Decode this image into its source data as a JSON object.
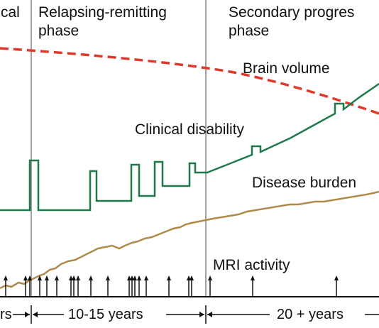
{
  "chart_data": {
    "type": "line",
    "title": "",
    "xlabel": "",
    "ylabel": "",
    "phases": [
      {
        "label_line1": "cal",
        "label_line2": ""
      },
      {
        "label_line1": "Relapsing-remitting",
        "label_line2": "phase"
      },
      {
        "label_line1": "Secondary progres",
        "label_line2": "phase"
      }
    ],
    "durations": [
      {
        "label": "rs"
      },
      {
        "label": "10-15 years"
      },
      {
        "label": "20 + years"
      }
    ],
    "series": [
      {
        "name": "Brain volume",
        "style": "dashed",
        "color": "#e0392b"
      },
      {
        "name": "Clinical disability",
        "style": "solid",
        "color": "#1f7a4a"
      },
      {
        "name": "Disease burden",
        "style": "solid",
        "color": "#b08a4a"
      }
    ],
    "mri_label": "MRI activity",
    "colors": {
      "brain_volume": "#e0392b",
      "clinical_disability": "#1f7a4a",
      "disease_burden": "#b08a4a",
      "axis": "#111111"
    }
  }
}
